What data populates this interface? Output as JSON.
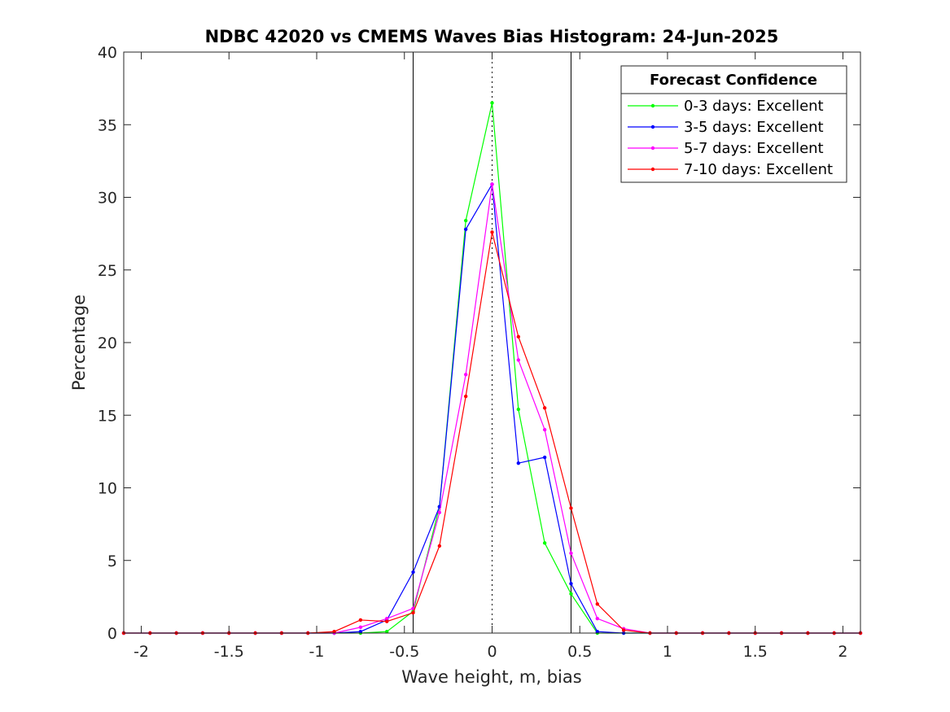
{
  "chart_data": {
    "type": "line",
    "title": "NDBC 42020 vs CMEMS Waves Bias Histogram: 24-Jun-2025",
    "xlabel": "Wave height, m, bias",
    "ylabel": "Percentage",
    "xlim": [
      -2.1,
      2.1
    ],
    "ylim": [
      0,
      40
    ],
    "xticks": [
      -2,
      -1.5,
      -1,
      -0.5,
      0,
      0.5,
      1,
      1.5,
      2
    ],
    "xtick_labels": [
      "-2",
      "-1.5",
      "-1",
      "-0.5",
      "0",
      "0.5",
      "1",
      "1.5",
      "2"
    ],
    "yticks": [
      0,
      5,
      10,
      15,
      20,
      25,
      30,
      35,
      40
    ],
    "ytick_labels": [
      "0",
      "5",
      "10",
      "15",
      "20",
      "25",
      "30",
      "35",
      "40"
    ],
    "grid": false,
    "reference_lines": [
      {
        "x": -0.45,
        "style": "solid",
        "color": "#000000"
      },
      {
        "x": 0,
        "style": "dotted",
        "color": "#000000"
      },
      {
        "x": 0.45,
        "style": "solid",
        "color": "#000000"
      }
    ],
    "legend": {
      "title": "Forecast Confidence",
      "location": "top-right"
    },
    "x": [
      -2.1,
      -1.95,
      -1.8,
      -1.65,
      -1.5,
      -1.35,
      -1.2,
      -1.05,
      -0.9,
      -0.75,
      -0.6,
      -0.45,
      -0.3,
      -0.15,
      0,
      0.15,
      0.3,
      0.45,
      0.6,
      0.75,
      0.9,
      1.05,
      1.2,
      1.35,
      1.5,
      1.65,
      1.8,
      1.95,
      2.1
    ],
    "series": [
      {
        "name": "0-3 days: Excellent",
        "color": "#00ff00",
        "values": [
          0,
          0,
          0,
          0,
          0,
          0,
          0,
          0,
          0,
          0,
          0.1,
          1.5,
          8.7,
          28.4,
          36.5,
          15.4,
          6.2,
          2.7,
          0,
          0,
          0,
          0,
          0,
          0,
          0,
          0,
          0,
          0,
          0
        ]
      },
      {
        "name": "3-5 days: Excellent",
        "color": "#0000ff",
        "values": [
          0,
          0,
          0,
          0,
          0,
          0,
          0,
          0,
          0,
          0.1,
          0.9,
          4.2,
          8.7,
          27.8,
          30.9,
          11.7,
          12.1,
          3.4,
          0.1,
          0,
          0,
          0,
          0,
          0,
          0,
          0,
          0,
          0,
          0
        ]
      },
      {
        "name": "5-7 days: Excellent",
        "color": "#ff00ff",
        "values": [
          0,
          0,
          0,
          0,
          0,
          0,
          0,
          0,
          0,
          0.4,
          1.0,
          1.7,
          8.3,
          17.8,
          30.9,
          18.8,
          14.0,
          5.5,
          1.0,
          0.3,
          0,
          0,
          0,
          0,
          0,
          0,
          0,
          0,
          0
        ]
      },
      {
        "name": "7-10 days: Excellent",
        "color": "#ff0000",
        "values": [
          0,
          0,
          0,
          0,
          0,
          0,
          0,
          0,
          0.1,
          0.9,
          0.8,
          1.4,
          6.0,
          16.3,
          27.6,
          20.4,
          15.5,
          8.6,
          2.0,
          0.2,
          0,
          0,
          0,
          0,
          0,
          0,
          0,
          0,
          0
        ]
      }
    ]
  }
}
